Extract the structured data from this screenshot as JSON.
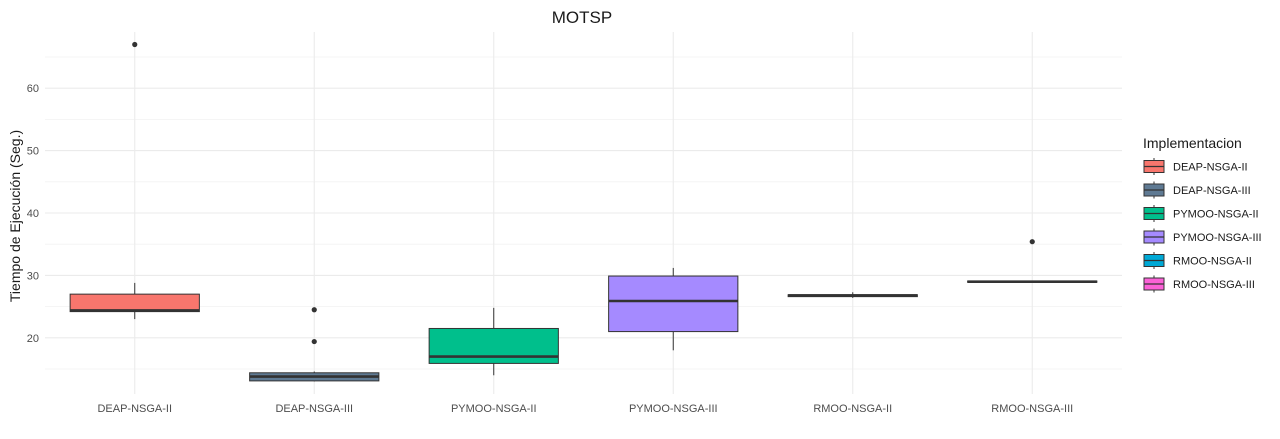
{
  "chart_data": {
    "type": "box",
    "title": "MOTSP",
    "xlabel": "",
    "ylabel": "Tiempo de Ejecución (Seg.)",
    "ylim": [
      11,
      69
    ],
    "yticks": [
      20,
      30,
      40,
      50,
      60
    ],
    "grid": true,
    "legend": {
      "title": "Implementacion",
      "position": "right",
      "entries": [
        "DEAP-NSGA-II",
        "DEAP-NSGA-III",
        "PYMOO-NSGA-II",
        "PYMOO-NSGA-III",
        "RMOO-NSGA-II",
        "RMOO-NSGA-III"
      ]
    },
    "categories": [
      "DEAP-NSGA-II",
      "DEAP-NSGA-III",
      "PYMOO-NSGA-II",
      "PYMOO-NSGA-III",
      "RMOO-NSGA-II",
      "RMOO-NSGA-III"
    ],
    "series": [
      {
        "name": "DEAP-NSGA-II",
        "color": "#F8766D",
        "min": 23.0,
        "q1": 24.2,
        "median": 24.4,
        "q3": 27.0,
        "max": 28.8,
        "outliers": [
          67.0
        ]
      },
      {
        "name": "DEAP-NSGA-III",
        "color": "#5F7A93",
        "min": 13.0,
        "q1": 13.1,
        "median": 13.8,
        "q3": 14.4,
        "max": 14.6,
        "outliers": [
          24.5,
          19.4
        ]
      },
      {
        "name": "PYMOO-NSGA-II",
        "color": "#00BF8C",
        "min": 14.0,
        "q1": 15.9,
        "median": 17.0,
        "q3": 21.5,
        "max": 24.8,
        "outliers": []
      },
      {
        "name": "PYMOO-NSGA-III",
        "color": "#A58AFF",
        "min": 18.0,
        "q1": 21.0,
        "median": 25.9,
        "q3": 29.9,
        "max": 31.2,
        "outliers": []
      },
      {
        "name": "RMOO-NSGA-II",
        "color": "#00A9D6",
        "min": 26.4,
        "q1": 26.6,
        "median": 26.8,
        "q3": 26.9,
        "max": 27.3,
        "outliers": []
      },
      {
        "name": "RMOO-NSGA-III",
        "color": "#FB61D7",
        "min": 28.9,
        "q1": 28.9,
        "median": 29.0,
        "q3": 29.1,
        "max": 29.1,
        "outliers": [
          35.4
        ]
      }
    ]
  }
}
